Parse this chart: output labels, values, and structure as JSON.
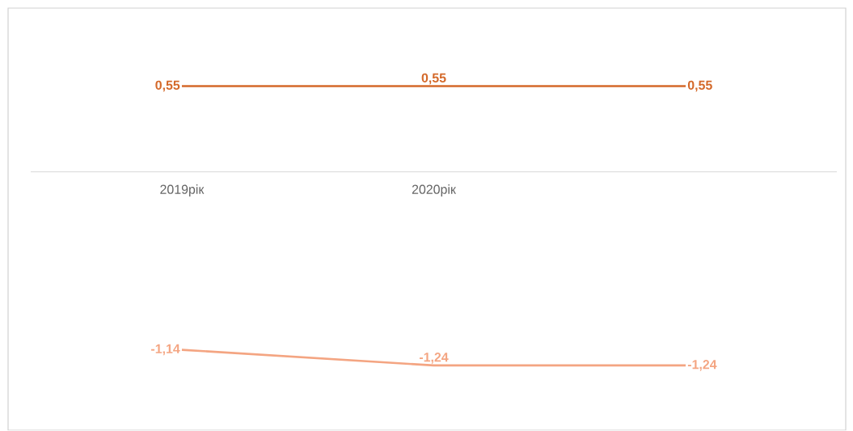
{
  "chart_data": {
    "type": "line",
    "categories": [
      "2019рік",
      "2020рік",
      null
    ],
    "series": [
      {
        "color": "#d4692a",
        "values": [
          0.55,
          0.55,
          0.55
        ],
        "value_labels": [
          "0,55",
          "0,55",
          "0,55"
        ]
      },
      {
        "color": "#f4a582",
        "values": [
          -1.14,
          -1.24,
          -1.24
        ],
        "value_labels": [
          "-1,14",
          "-1,24",
          "-1,24"
        ]
      }
    ],
    "ylim": [
      -1.65,
      1.05
    ],
    "tick_labels": "x",
    "marker": "none"
  }
}
